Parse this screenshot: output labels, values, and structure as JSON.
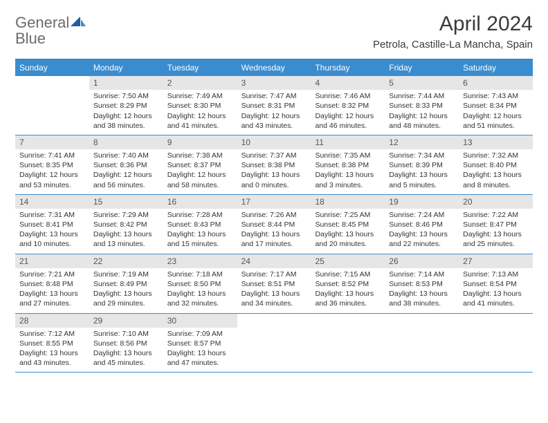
{
  "logo": {
    "textGray": "General",
    "textBlue": "Blue"
  },
  "title": "April 2024",
  "location": "Petrola, Castille-La Mancha, Spain",
  "dayNames": [
    "Sunday",
    "Monday",
    "Tuesday",
    "Wednesday",
    "Thursday",
    "Friday",
    "Saturday"
  ],
  "colors": {
    "headerBg": "#3a8ccf",
    "headerText": "#ffffff",
    "dayNumBg": "#e6e6e6",
    "borderBlue": "#3a8ccf",
    "logoGray": "#6b6b6b",
    "logoBlue": "#2a7fc1"
  },
  "weeks": [
    [
      null,
      {
        "n": "1",
        "sr": "Sunrise: 7:50 AM",
        "ss": "Sunset: 8:29 PM",
        "d1": "Daylight: 12 hours",
        "d2": "and 38 minutes."
      },
      {
        "n": "2",
        "sr": "Sunrise: 7:49 AM",
        "ss": "Sunset: 8:30 PM",
        "d1": "Daylight: 12 hours",
        "d2": "and 41 minutes."
      },
      {
        "n": "3",
        "sr": "Sunrise: 7:47 AM",
        "ss": "Sunset: 8:31 PM",
        "d1": "Daylight: 12 hours",
        "d2": "and 43 minutes."
      },
      {
        "n": "4",
        "sr": "Sunrise: 7:46 AM",
        "ss": "Sunset: 8:32 PM",
        "d1": "Daylight: 12 hours",
        "d2": "and 46 minutes."
      },
      {
        "n": "5",
        "sr": "Sunrise: 7:44 AM",
        "ss": "Sunset: 8:33 PM",
        "d1": "Daylight: 12 hours",
        "d2": "and 48 minutes."
      },
      {
        "n": "6",
        "sr": "Sunrise: 7:43 AM",
        "ss": "Sunset: 8:34 PM",
        "d1": "Daylight: 12 hours",
        "d2": "and 51 minutes."
      }
    ],
    [
      {
        "n": "7",
        "sr": "Sunrise: 7:41 AM",
        "ss": "Sunset: 8:35 PM",
        "d1": "Daylight: 12 hours",
        "d2": "and 53 minutes."
      },
      {
        "n": "8",
        "sr": "Sunrise: 7:40 AM",
        "ss": "Sunset: 8:36 PM",
        "d1": "Daylight: 12 hours",
        "d2": "and 56 minutes."
      },
      {
        "n": "9",
        "sr": "Sunrise: 7:38 AM",
        "ss": "Sunset: 8:37 PM",
        "d1": "Daylight: 12 hours",
        "d2": "and 58 minutes."
      },
      {
        "n": "10",
        "sr": "Sunrise: 7:37 AM",
        "ss": "Sunset: 8:38 PM",
        "d1": "Daylight: 13 hours",
        "d2": "and 0 minutes."
      },
      {
        "n": "11",
        "sr": "Sunrise: 7:35 AM",
        "ss": "Sunset: 8:38 PM",
        "d1": "Daylight: 13 hours",
        "d2": "and 3 minutes."
      },
      {
        "n": "12",
        "sr": "Sunrise: 7:34 AM",
        "ss": "Sunset: 8:39 PM",
        "d1": "Daylight: 13 hours",
        "d2": "and 5 minutes."
      },
      {
        "n": "13",
        "sr": "Sunrise: 7:32 AM",
        "ss": "Sunset: 8:40 PM",
        "d1": "Daylight: 13 hours",
        "d2": "and 8 minutes."
      }
    ],
    [
      {
        "n": "14",
        "sr": "Sunrise: 7:31 AM",
        "ss": "Sunset: 8:41 PM",
        "d1": "Daylight: 13 hours",
        "d2": "and 10 minutes."
      },
      {
        "n": "15",
        "sr": "Sunrise: 7:29 AM",
        "ss": "Sunset: 8:42 PM",
        "d1": "Daylight: 13 hours",
        "d2": "and 13 minutes."
      },
      {
        "n": "16",
        "sr": "Sunrise: 7:28 AM",
        "ss": "Sunset: 8:43 PM",
        "d1": "Daylight: 13 hours",
        "d2": "and 15 minutes."
      },
      {
        "n": "17",
        "sr": "Sunrise: 7:26 AM",
        "ss": "Sunset: 8:44 PM",
        "d1": "Daylight: 13 hours",
        "d2": "and 17 minutes."
      },
      {
        "n": "18",
        "sr": "Sunrise: 7:25 AM",
        "ss": "Sunset: 8:45 PM",
        "d1": "Daylight: 13 hours",
        "d2": "and 20 minutes."
      },
      {
        "n": "19",
        "sr": "Sunrise: 7:24 AM",
        "ss": "Sunset: 8:46 PM",
        "d1": "Daylight: 13 hours",
        "d2": "and 22 minutes."
      },
      {
        "n": "20",
        "sr": "Sunrise: 7:22 AM",
        "ss": "Sunset: 8:47 PM",
        "d1": "Daylight: 13 hours",
        "d2": "and 25 minutes."
      }
    ],
    [
      {
        "n": "21",
        "sr": "Sunrise: 7:21 AM",
        "ss": "Sunset: 8:48 PM",
        "d1": "Daylight: 13 hours",
        "d2": "and 27 minutes."
      },
      {
        "n": "22",
        "sr": "Sunrise: 7:19 AM",
        "ss": "Sunset: 8:49 PM",
        "d1": "Daylight: 13 hours",
        "d2": "and 29 minutes."
      },
      {
        "n": "23",
        "sr": "Sunrise: 7:18 AM",
        "ss": "Sunset: 8:50 PM",
        "d1": "Daylight: 13 hours",
        "d2": "and 32 minutes."
      },
      {
        "n": "24",
        "sr": "Sunrise: 7:17 AM",
        "ss": "Sunset: 8:51 PM",
        "d1": "Daylight: 13 hours",
        "d2": "and 34 minutes."
      },
      {
        "n": "25",
        "sr": "Sunrise: 7:15 AM",
        "ss": "Sunset: 8:52 PM",
        "d1": "Daylight: 13 hours",
        "d2": "and 36 minutes."
      },
      {
        "n": "26",
        "sr": "Sunrise: 7:14 AM",
        "ss": "Sunset: 8:53 PM",
        "d1": "Daylight: 13 hours",
        "d2": "and 38 minutes."
      },
      {
        "n": "27",
        "sr": "Sunrise: 7:13 AM",
        "ss": "Sunset: 8:54 PM",
        "d1": "Daylight: 13 hours",
        "d2": "and 41 minutes."
      }
    ],
    [
      {
        "n": "28",
        "sr": "Sunrise: 7:12 AM",
        "ss": "Sunset: 8:55 PM",
        "d1": "Daylight: 13 hours",
        "d2": "and 43 minutes."
      },
      {
        "n": "29",
        "sr": "Sunrise: 7:10 AM",
        "ss": "Sunset: 8:56 PM",
        "d1": "Daylight: 13 hours",
        "d2": "and 45 minutes."
      },
      {
        "n": "30",
        "sr": "Sunrise: 7:09 AM",
        "ss": "Sunset: 8:57 PM",
        "d1": "Daylight: 13 hours",
        "d2": "and 47 minutes."
      },
      null,
      null,
      null,
      null
    ]
  ]
}
